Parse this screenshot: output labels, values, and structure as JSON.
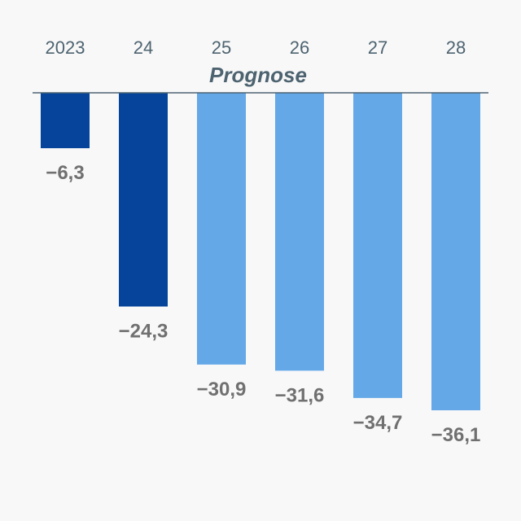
{
  "chart_data": {
    "type": "bar",
    "categories": [
      "2023",
      "24",
      "25",
      "26",
      "27",
      "28"
    ],
    "values": [
      -6.3,
      -24.3,
      -30.9,
      -31.6,
      -34.7,
      -36.1
    ],
    "value_labels": [
      "−6,3",
      "−24,3",
      "−30,9",
      "−31,6",
      "−34,7",
      "−36,1"
    ],
    "forecast_label": "Prognose",
    "forecast_start_index": 2,
    "ylim": [
      -36.1,
      0
    ],
    "grid": false,
    "legend": "none",
    "colors": {
      "actual": "#05449a",
      "forecast": "#64a8e8",
      "baseline": "#4d6370",
      "category_text": "#4d6370",
      "value_text": "#707070",
      "background": "#f8f8f8"
    }
  }
}
